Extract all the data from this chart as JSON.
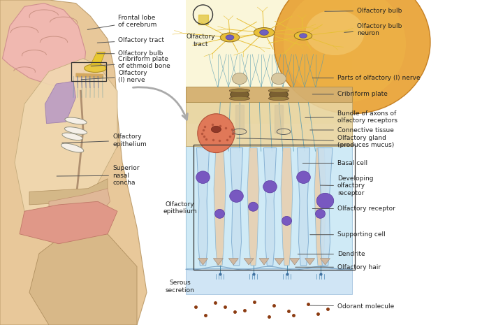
{
  "bg_color": "#ffffff",
  "label_fontsize": 6.5,
  "label_color": "#222222",
  "line_color": "#555555",
  "left_labels": [
    {
      "text": "Frontal lobe\nof cerebrum",
      "pt": [
        0.228,
        0.895
      ],
      "txt": [
        0.295,
        0.93
      ]
    },
    {
      "text": "Olfactory tract",
      "pt": [
        0.21,
        0.848
      ],
      "txt": [
        0.295,
        0.87
      ]
    },
    {
      "text": "Olfactory bulb",
      "pt": [
        0.195,
        0.81
      ],
      "txt": [
        0.295,
        0.832
      ]
    },
    {
      "text": "Cribriform plate\nof ethmoid bone",
      "pt": [
        0.188,
        0.77
      ],
      "txt": [
        0.295,
        0.79
      ]
    },
    {
      "text": "Olfactory\n(I) nerve",
      "pt": [
        0.175,
        0.728
      ],
      "txt": [
        0.295,
        0.745
      ]
    },
    {
      "text": "Olfactory\nepithelium",
      "pt": [
        0.128,
        0.53
      ],
      "txt": [
        0.245,
        0.545
      ]
    },
    {
      "text": "Superior\nnasal\nconcha",
      "pt": [
        0.115,
        0.435
      ],
      "txt": [
        0.245,
        0.44
      ]
    }
  ],
  "right_labels": [
    {
      "text": "Olfactory bulb",
      "pt": [
        0.67,
        0.96
      ],
      "txt": [
        0.755,
        0.962
      ]
    },
    {
      "text": "Olfactory bulb\nneuron",
      "pt": [
        0.71,
        0.895
      ],
      "txt": [
        0.755,
        0.902
      ]
    },
    {
      "text": "Parts of olfactory (I) nerve",
      "pt": [
        0.66,
        0.748
      ],
      "txt": [
        0.72,
        0.75
      ]
    },
    {
      "text": "Cribriform plate",
      "pt": [
        0.64,
        0.692
      ],
      "txt": [
        0.72,
        0.694
      ]
    },
    {
      "text": "Bundle of axons of\nolfactory receptors",
      "pt": [
        0.635,
        0.625
      ],
      "txt": [
        0.72,
        0.628
      ]
    },
    {
      "text": "Connective tissue",
      "pt": [
        0.65,
        0.585
      ],
      "txt": [
        0.72,
        0.587
      ]
    },
    {
      "text": "Olfactory gland\n(produces mucus)",
      "pt": [
        0.54,
        0.548
      ],
      "txt": [
        0.72,
        0.545
      ]
    },
    {
      "text": "Basal cell",
      "pt": [
        0.635,
        0.48
      ],
      "txt": [
        0.72,
        0.486
      ]
    },
    {
      "text": "Developing\nolfactory\nreceptor",
      "pt": [
        0.668,
        0.42
      ],
      "txt": [
        0.72,
        0.415
      ]
    },
    {
      "text": "Olfactory receptor",
      "pt": [
        0.66,
        0.338
      ],
      "txt": [
        0.72,
        0.34
      ]
    },
    {
      "text": "Supporting cell",
      "pt": [
        0.658,
        0.262
      ],
      "txt": [
        0.72,
        0.263
      ]
    },
    {
      "text": "Dendrite",
      "pt": [
        0.635,
        0.205
      ],
      "txt": [
        0.72,
        0.206
      ]
    },
    {
      "text": "Olfactory hair",
      "pt": [
        0.63,
        0.168
      ],
      "txt": [
        0.72,
        0.168
      ]
    },
    {
      "text": "Odorant molecule",
      "pt": [
        0.66,
        0.08
      ],
      "txt": [
        0.72,
        0.078
      ]
    }
  ]
}
